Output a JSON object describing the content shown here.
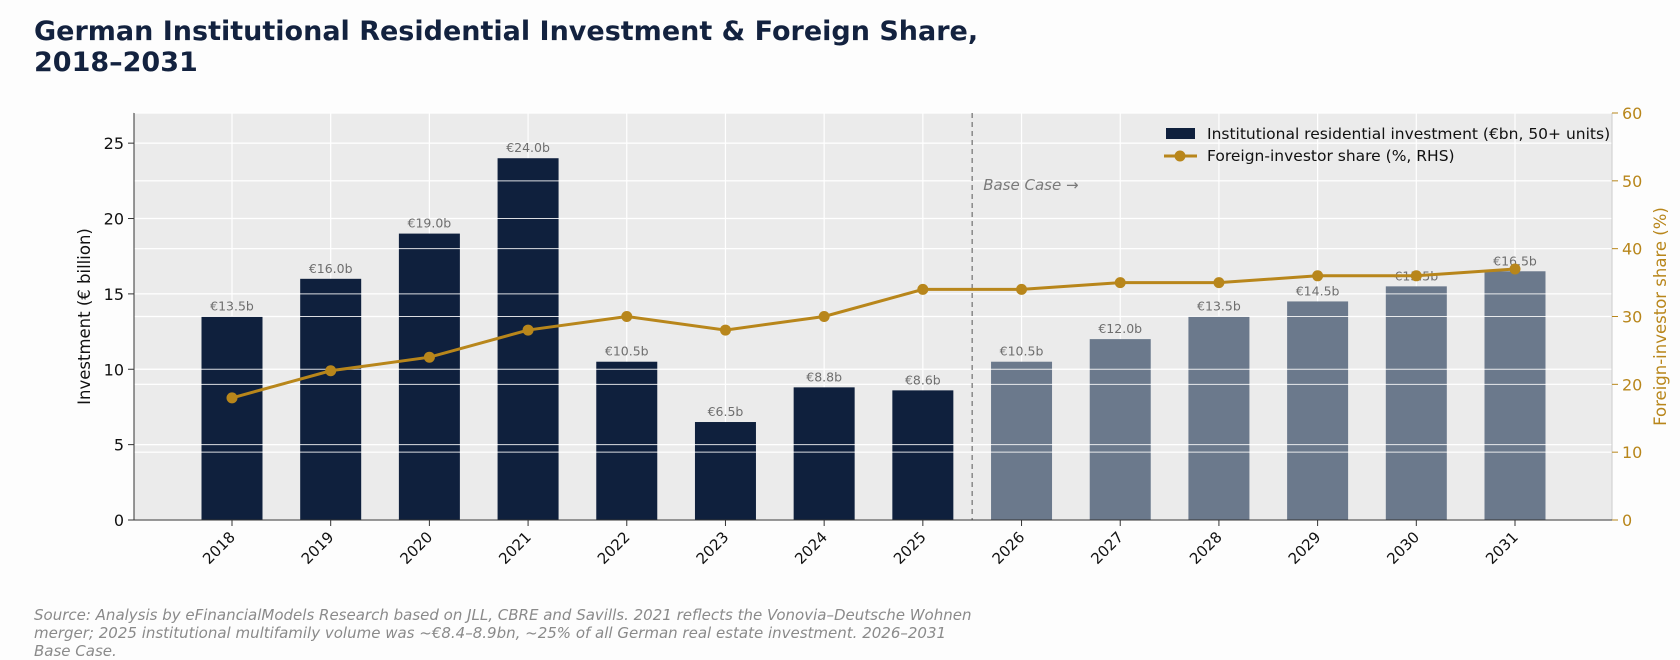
{
  "title": "German Institutional Residential Investment & Foreign Share, 2018–2031",
  "source_note": "Source: Analysis by eFinancialModels Research based on JLL, CBRE and Savills. 2021 reflects the Vonovia–Deutsche Wohnen merger; 2025 institutional multifamily volume was ~€8.4–8.9bn, ~25% of all German real estate investment. 2026–2031 Base Case.",
  "colors": {
    "historical_bar": "#0f203d",
    "forecast_bar": "#6b798c",
    "line": "#b8861b",
    "plot_background": "#ebebeb",
    "gridline": "#ffffff",
    "divider": "#888888"
  },
  "chart_data": {
    "type": "bar",
    "categories": [
      "2018",
      "2019",
      "2020",
      "2021",
      "2022",
      "2023",
      "2024",
      "2025",
      "2026",
      "2027",
      "2028",
      "2029",
      "2030",
      "2031"
    ],
    "forecast_start_index": 8,
    "forecast_label": "Base Case →",
    "series": [
      {
        "name": "Institutional residential investment (€bn, 50+ units)",
        "type": "bar",
        "axis": "left",
        "values": [
          13.5,
          16.0,
          19.0,
          24.0,
          10.5,
          6.5,
          8.8,
          8.6,
          10.5,
          12.0,
          13.5,
          14.5,
          15.5,
          16.5
        ],
        "labels": [
          "€13.5b",
          "€16.0b",
          "€19.0b",
          "€24.0b",
          "€10.5b",
          "€6.5b",
          "€8.8b",
          "€8.6b",
          "€10.5b",
          "€12.0b",
          "€13.5b",
          "€14.5b",
          "€15.5b",
          "€16.5b"
        ]
      },
      {
        "name": "Foreign-investor share (%, RHS)",
        "type": "line",
        "axis": "right",
        "values": [
          18,
          22,
          24,
          28,
          30,
          28,
          30,
          34,
          34,
          35,
          35,
          36,
          36,
          37
        ]
      }
    ],
    "ylabel": "Investment (€ billion)",
    "ylabel_right": "Foreign-investor share (%)",
    "ylim": [
      0,
      27
    ],
    "yticks": [
      0,
      5,
      10,
      15,
      20,
      25
    ],
    "ylim_right": [
      0,
      60
    ],
    "yticks_right": [
      0,
      10,
      20,
      30,
      40,
      50,
      60
    ],
    "grid": true,
    "legend_position": "top-right"
  }
}
